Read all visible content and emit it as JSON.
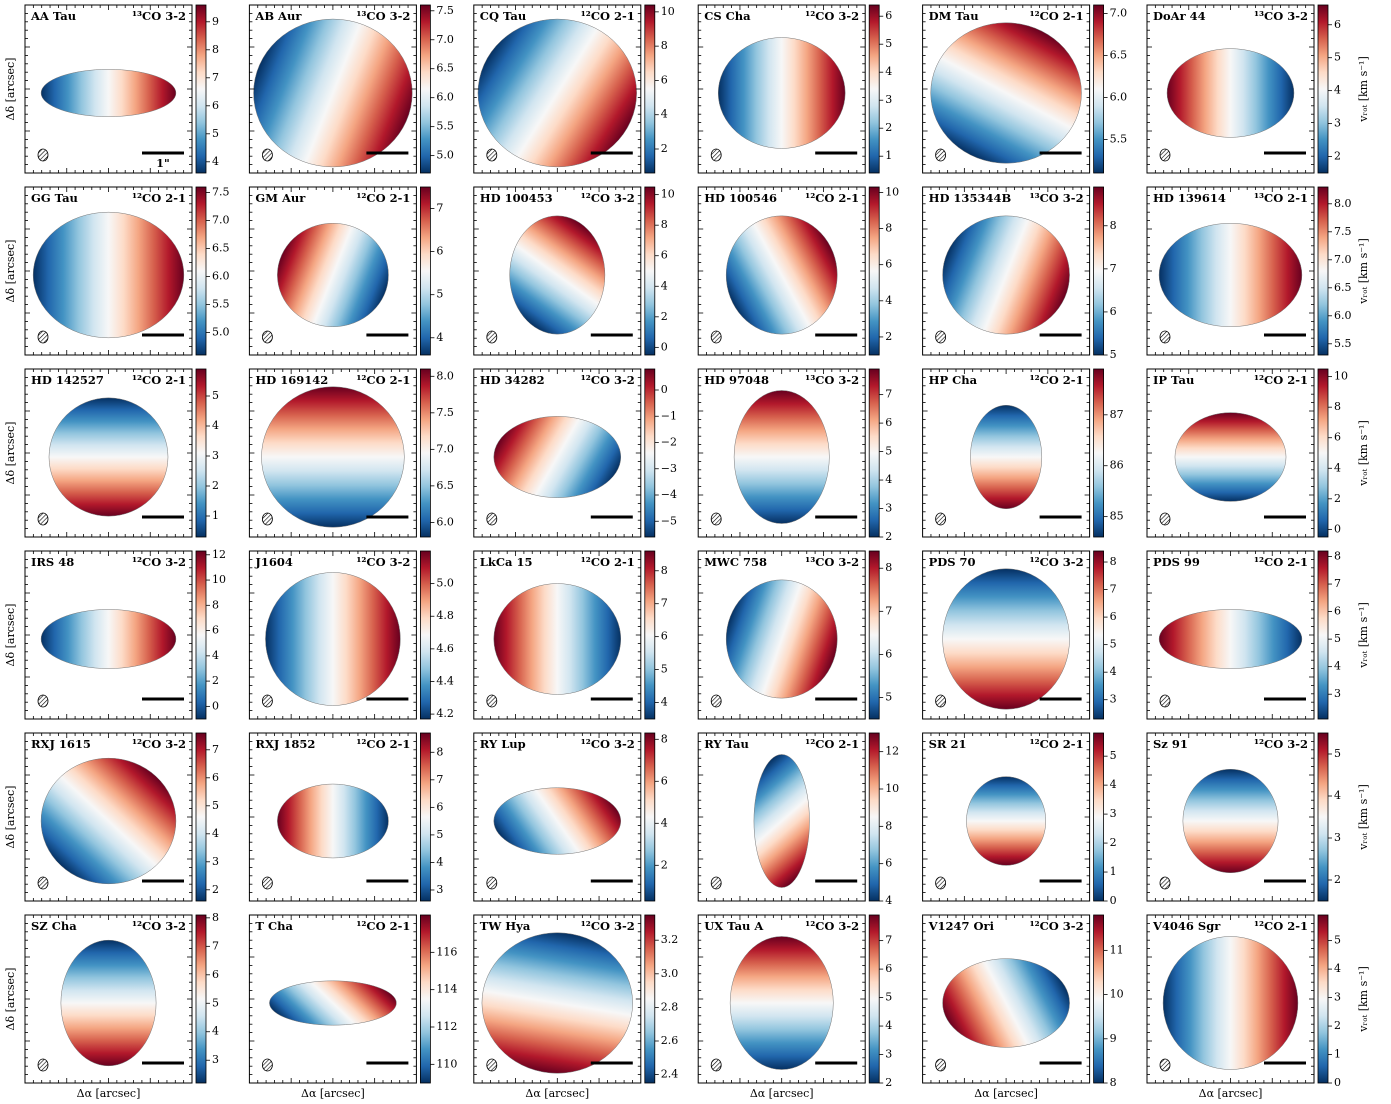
{
  "colormap": [
    "#053061",
    "#2166ac",
    "#4393c3",
    "#92c5de",
    "#d1e5f0",
    "#f7f7f7",
    "#fddbc7",
    "#f4a582",
    "#d6604d",
    "#b2182b",
    "#67001f"
  ],
  "chart_data": [
    {
      "type": "velocity-map",
      "title": "AA Tau",
      "line": "¹³CO 3-2",
      "clim": [
        3.6,
        9.6
      ],
      "cticks": [
        4,
        5,
        6,
        7,
        8,
        9
      ],
      "ylabel": "Δδ [arcsec]",
      "scale_label": "1\""
    },
    {
      "type": "velocity-map",
      "title": "AB Aur",
      "line": "¹³CO 3-2",
      "clim": [
        4.7,
        7.6
      ],
      "cticks": [
        {
          "value": 5,
          "label": "5.0"
        },
        5.5,
        {
          "value": 6,
          "label": "6.0"
        },
        6.5,
        {
          "value": 7,
          "label": "7.0"
        },
        7.5
      ]
    },
    {
      "type": "velocity-map",
      "title": "CQ Tau",
      "line": "¹²CO 2-1",
      "clim": [
        0.6,
        10.4
      ],
      "cticks": [
        2,
        4,
        6,
        8,
        10
      ]
    },
    {
      "type": "velocity-map",
      "title": "CS Cha",
      "line": "¹²CO 3-2",
      "clim": [
        0.4,
        6.4
      ],
      "cticks": [
        1,
        2,
        3,
        4,
        5,
        6
      ]
    },
    {
      "type": "velocity-map",
      "title": "DM Tau",
      "line": "¹²CO 2-1",
      "clim": [
        5.1,
        7.1
      ],
      "cticks": [
        5.5,
        {
          "value": 6,
          "label": "6.0"
        },
        6.5,
        {
          "value": 7,
          "label": "7.0"
        }
      ]
    },
    {
      "type": "velocity-map",
      "title": "DoAr 44",
      "line": "¹³CO 3-2",
      "clim": [
        1.5,
        6.6
      ],
      "cticks": [
        2,
        3,
        4,
        5,
        6
      ],
      "clabel": "vᵣₒₜ [km s⁻¹]"
    },
    {
      "type": "velocity-map",
      "title": "GG Tau",
      "line": "¹²CO 2-1",
      "clim": [
        4.6,
        7.6
      ],
      "cticks": [
        {
          "value": 5,
          "label": "5.0"
        },
        5.5,
        {
          "value": 6,
          "label": "6.0"
        },
        6.5,
        {
          "value": 7,
          "label": "7.0"
        },
        7.5
      ],
      "ylabel": "Δδ [arcsec]"
    },
    {
      "type": "velocity-map",
      "title": "GM Aur",
      "line": "¹²CO 2-1",
      "clim": [
        3.6,
        7.5
      ],
      "cticks": [
        4,
        5,
        6,
        7
      ]
    },
    {
      "type": "velocity-map",
      "title": "HD 100453",
      "line": "¹²CO 3-2",
      "clim": [
        -0.5,
        10.5
      ],
      "cticks": [
        0,
        2,
        4,
        6,
        8,
        10
      ]
    },
    {
      "type": "velocity-map",
      "title": "HD 100546",
      "line": "¹²CO 2-1",
      "clim": [
        1,
        10.3
      ],
      "cticks": [
        2,
        4,
        6,
        8,
        10
      ]
    },
    {
      "type": "velocity-map",
      "title": "HD 135344B",
      "line": "¹³CO 3-2",
      "clim": [
        5,
        8.9
      ],
      "cticks": [
        5,
        6,
        7,
        8
      ]
    },
    {
      "type": "velocity-map",
      "title": "HD 139614",
      "line": "¹³CO 2-1",
      "clim": [
        5.3,
        8.3
      ],
      "cticks": [
        5.5,
        {
          "value": 6,
          "label": "6.0"
        },
        6.5,
        {
          "value": 7,
          "label": "7.0"
        },
        7.5,
        {
          "value": 8,
          "label": "8.0"
        }
      ],
      "clabel": "vᵣₒₜ [km s⁻¹]"
    },
    {
      "type": "velocity-map",
      "title": "HD 142527",
      "line": "¹²CO 2-1",
      "clim": [
        0.3,
        5.9
      ],
      "cticks": [
        1,
        2,
        3,
        4,
        5
      ],
      "ylabel": "Δδ [arcsec]"
    },
    {
      "type": "velocity-map",
      "title": "HD 169142",
      "line": "¹²CO 2-1",
      "clim": [
        5.8,
        8.1
      ],
      "cticks": [
        {
          "value": 6,
          "label": "6.0"
        },
        6.5,
        {
          "value": 7,
          "label": "7.0"
        },
        7.5,
        {
          "value": 8,
          "label": "8.0"
        }
      ]
    },
    {
      "type": "velocity-map",
      "title": "HD 34282",
      "line": "¹²CO 3-2",
      "clim": [
        -5.6,
        0.8
      ],
      "cticks": [
        {
          "value": -5,
          "label": "−5"
        },
        {
          "value": -4,
          "label": "−4"
        },
        {
          "value": -3,
          "label": "−3"
        },
        {
          "value": -2,
          "label": "−2"
        },
        {
          "value": -1,
          "label": "−1"
        },
        0
      ]
    },
    {
      "type": "velocity-map",
      "title": "HD 97048",
      "line": "¹³CO 3-2",
      "clim": [
        2,
        7.9
      ],
      "cticks": [
        2,
        3,
        4,
        5,
        6,
        7
      ]
    },
    {
      "type": "velocity-map",
      "title": "HP Cha",
      "line": "¹²CO 2-1",
      "clim": [
        84.6,
        87.9
      ],
      "cticks": [
        85,
        86,
        87
      ]
    },
    {
      "type": "velocity-map",
      "title": "IP Tau",
      "line": "¹²CO 2-1",
      "clim": [
        -0.5,
        10.5
      ],
      "cticks": [
        0,
        2,
        4,
        6,
        8,
        10
      ],
      "clabel": "vᵣₒₜ [km s⁻¹]"
    },
    {
      "type": "velocity-map",
      "title": "IRS 48",
      "line": "¹²CO 3-2",
      "clim": [
        -1,
        12.3
      ],
      "cticks": [
        0,
        2,
        4,
        6,
        8,
        10,
        12
      ],
      "ylabel": "Δδ [arcsec]"
    },
    {
      "type": "velocity-map",
      "title": "J1604",
      "line": "¹²CO 3-2",
      "clim": [
        4.17,
        5.2
      ],
      "cticks": [
        4.2,
        4.4,
        4.6,
        4.8,
        {
          "value": 5,
          "label": "5.0"
        }
      ]
    },
    {
      "type": "velocity-map",
      "title": "LkCa 15",
      "line": "¹²CO 2-1",
      "clim": [
        3.5,
        8.6
      ],
      "cticks": [
        4,
        5,
        6,
        7,
        8
      ]
    },
    {
      "type": "velocity-map",
      "title": "MWC 758",
      "line": "¹³CO 3-2",
      "clim": [
        4.5,
        8.4
      ],
      "cticks": [
        5,
        6,
        7,
        8
      ]
    },
    {
      "type": "velocity-map",
      "title": "PDS 70",
      "line": "¹²CO 3-2",
      "clim": [
        2.3,
        8.4
      ],
      "cticks": [
        3,
        4,
        5,
        6,
        7,
        8
      ]
    },
    {
      "type": "velocity-map",
      "title": "PDS 99",
      "line": "¹²CO 2-1",
      "clim": [
        2.1,
        8.2
      ],
      "cticks": [
        3,
        4,
        5,
        6,
        7,
        8
      ],
      "clabel": "vᵣₒₜ [km s⁻¹]"
    },
    {
      "type": "velocity-map",
      "title": "RXJ 1615",
      "line": "¹²CO 3-2",
      "clim": [
        1.6,
        7.6
      ],
      "cticks": [
        2,
        3,
        4,
        5,
        6,
        7
      ],
      "ylabel": "Δδ [arcsec]"
    },
    {
      "type": "velocity-map",
      "title": "RXJ 1852",
      "line": "¹²CO 2-1",
      "clim": [
        2.6,
        8.7
      ],
      "cticks": [
        3,
        4,
        5,
        6,
        7,
        8
      ]
    },
    {
      "type": "velocity-map",
      "title": "RY Lup",
      "line": "¹²CO 3-2",
      "clim": [
        0.3,
        8.3
      ],
      "cticks": [
        2,
        4,
        6,
        8
      ]
    },
    {
      "type": "velocity-map",
      "title": "RY Tau",
      "line": "¹²CO 2-1",
      "clim": [
        4,
        13
      ],
      "cticks": [
        4,
        6,
        8,
        10,
        12
      ]
    },
    {
      "type": "velocity-map",
      "title": "SR 21",
      "line": "¹²CO 2-1",
      "clim": [
        0,
        5.8
      ],
      "cticks": [
        0,
        1,
        2,
        3,
        4,
        5
      ]
    },
    {
      "type": "velocity-map",
      "title": "Sz 91",
      "line": "¹²CO 3-2",
      "clim": [
        1.5,
        5.5
      ],
      "cticks": [
        2,
        3,
        4,
        5
      ],
      "clabel": "vᵣₒₜ [km s⁻¹]"
    },
    {
      "type": "velocity-map",
      "title": "SZ Cha",
      "line": "¹²CO 3-2",
      "clim": [
        2.2,
        8.1
      ],
      "cticks": [
        3,
        4,
        5,
        6,
        7,
        8
      ],
      "ylabel": "Δδ [arcsec]",
      "xlabel": "Δα [arcsec]"
    },
    {
      "type": "velocity-map",
      "title": "T Cha",
      "line": "¹²CO 2-1",
      "clim": [
        109,
        118
      ],
      "cticks": [
        110,
        112,
        114,
        116
      ],
      "xlabel": "Δα [arcsec]"
    },
    {
      "type": "velocity-map",
      "title": "TW Hya",
      "line": "¹²CO 3-2",
      "clim": [
        2.35,
        3.35
      ],
      "cticks": [
        2.4,
        2.6,
        2.8,
        {
          "value": 3,
          "label": "3.0"
        },
        3.2
      ],
      "xlabel": "Δα [arcsec]"
    },
    {
      "type": "velocity-map",
      "title": "UX Tau A",
      "line": "¹²CO 3-2",
      "clim": [
        2,
        7.9
      ],
      "cticks": [
        2,
        3,
        4,
        5,
        6,
        7
      ],
      "xlabel": "Δα [arcsec]"
    },
    {
      "type": "velocity-map",
      "title": "V1247 Ori",
      "line": "¹²CO 3-2",
      "clim": [
        8,
        11.8
      ],
      "cticks": [
        8,
        9,
        10,
        11
      ],
      "xlabel": "Δα [arcsec]"
    },
    {
      "type": "velocity-map",
      "title": "V4046 Sgr",
      "line": "¹²CO 2-1",
      "clim": [
        0,
        5.9
      ],
      "cticks": [
        0,
        1,
        2,
        3,
        4,
        5
      ],
      "xlabel": "Δα [arcsec]",
      "clabel": "vᵣₒₜ [km s⁻¹]"
    }
  ]
}
